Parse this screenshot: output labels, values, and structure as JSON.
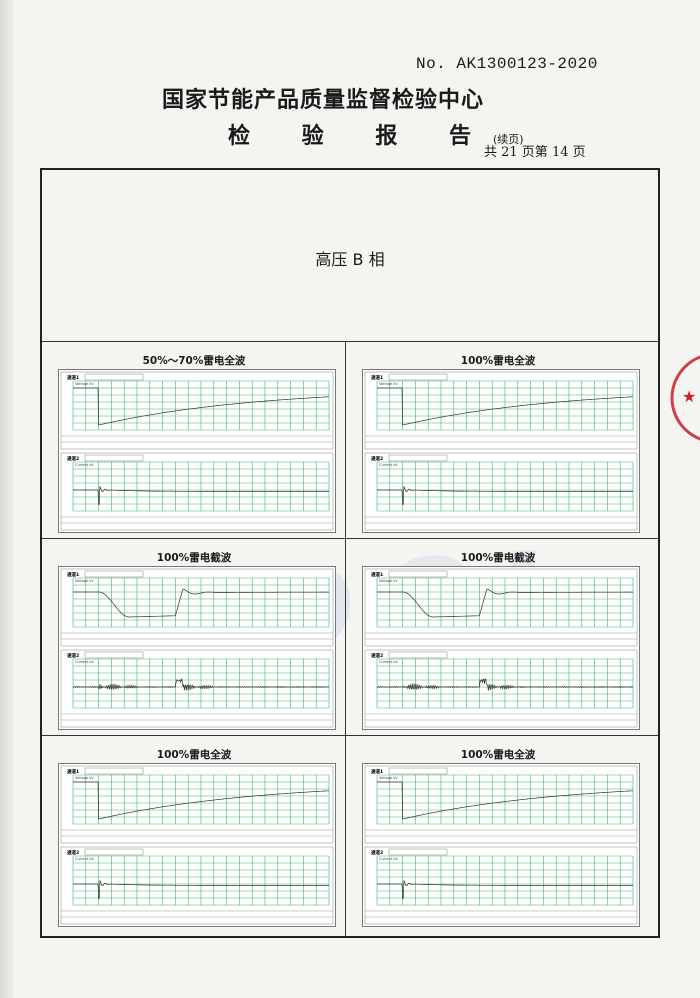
{
  "header": {
    "report_no": "No. AK1300123-2020",
    "organization": "国家节能产品质量监督检验中心",
    "report_title": "检 验 报 告",
    "continued": "(续页)",
    "pages": "共 21 页第 14 页"
  },
  "section_title": "高压 B 相",
  "panels": [
    {
      "title": "50%～70%雷电全波",
      "waveform": "full"
    },
    {
      "title": "100%雷电全波",
      "waveform": "full"
    },
    {
      "title": "100%雷电截波",
      "waveform": "chopped"
    },
    {
      "title": "100%雷电截波",
      "waveform": "chopped"
    },
    {
      "title": "100%雷电全波",
      "waveform": "full"
    },
    {
      "title": "100%雷电全波",
      "waveform": "full"
    }
  ],
  "chart_labels": {
    "channel1": "通道1",
    "channel2": "通道2",
    "voltage": "Voltage kV",
    "current": "Current kA"
  },
  "colors": {
    "grid": "#3db36b",
    "trace": "#333333",
    "stamp": "#c8202a",
    "watermark": "#9bb3d6"
  },
  "watermark": "SDQI"
}
